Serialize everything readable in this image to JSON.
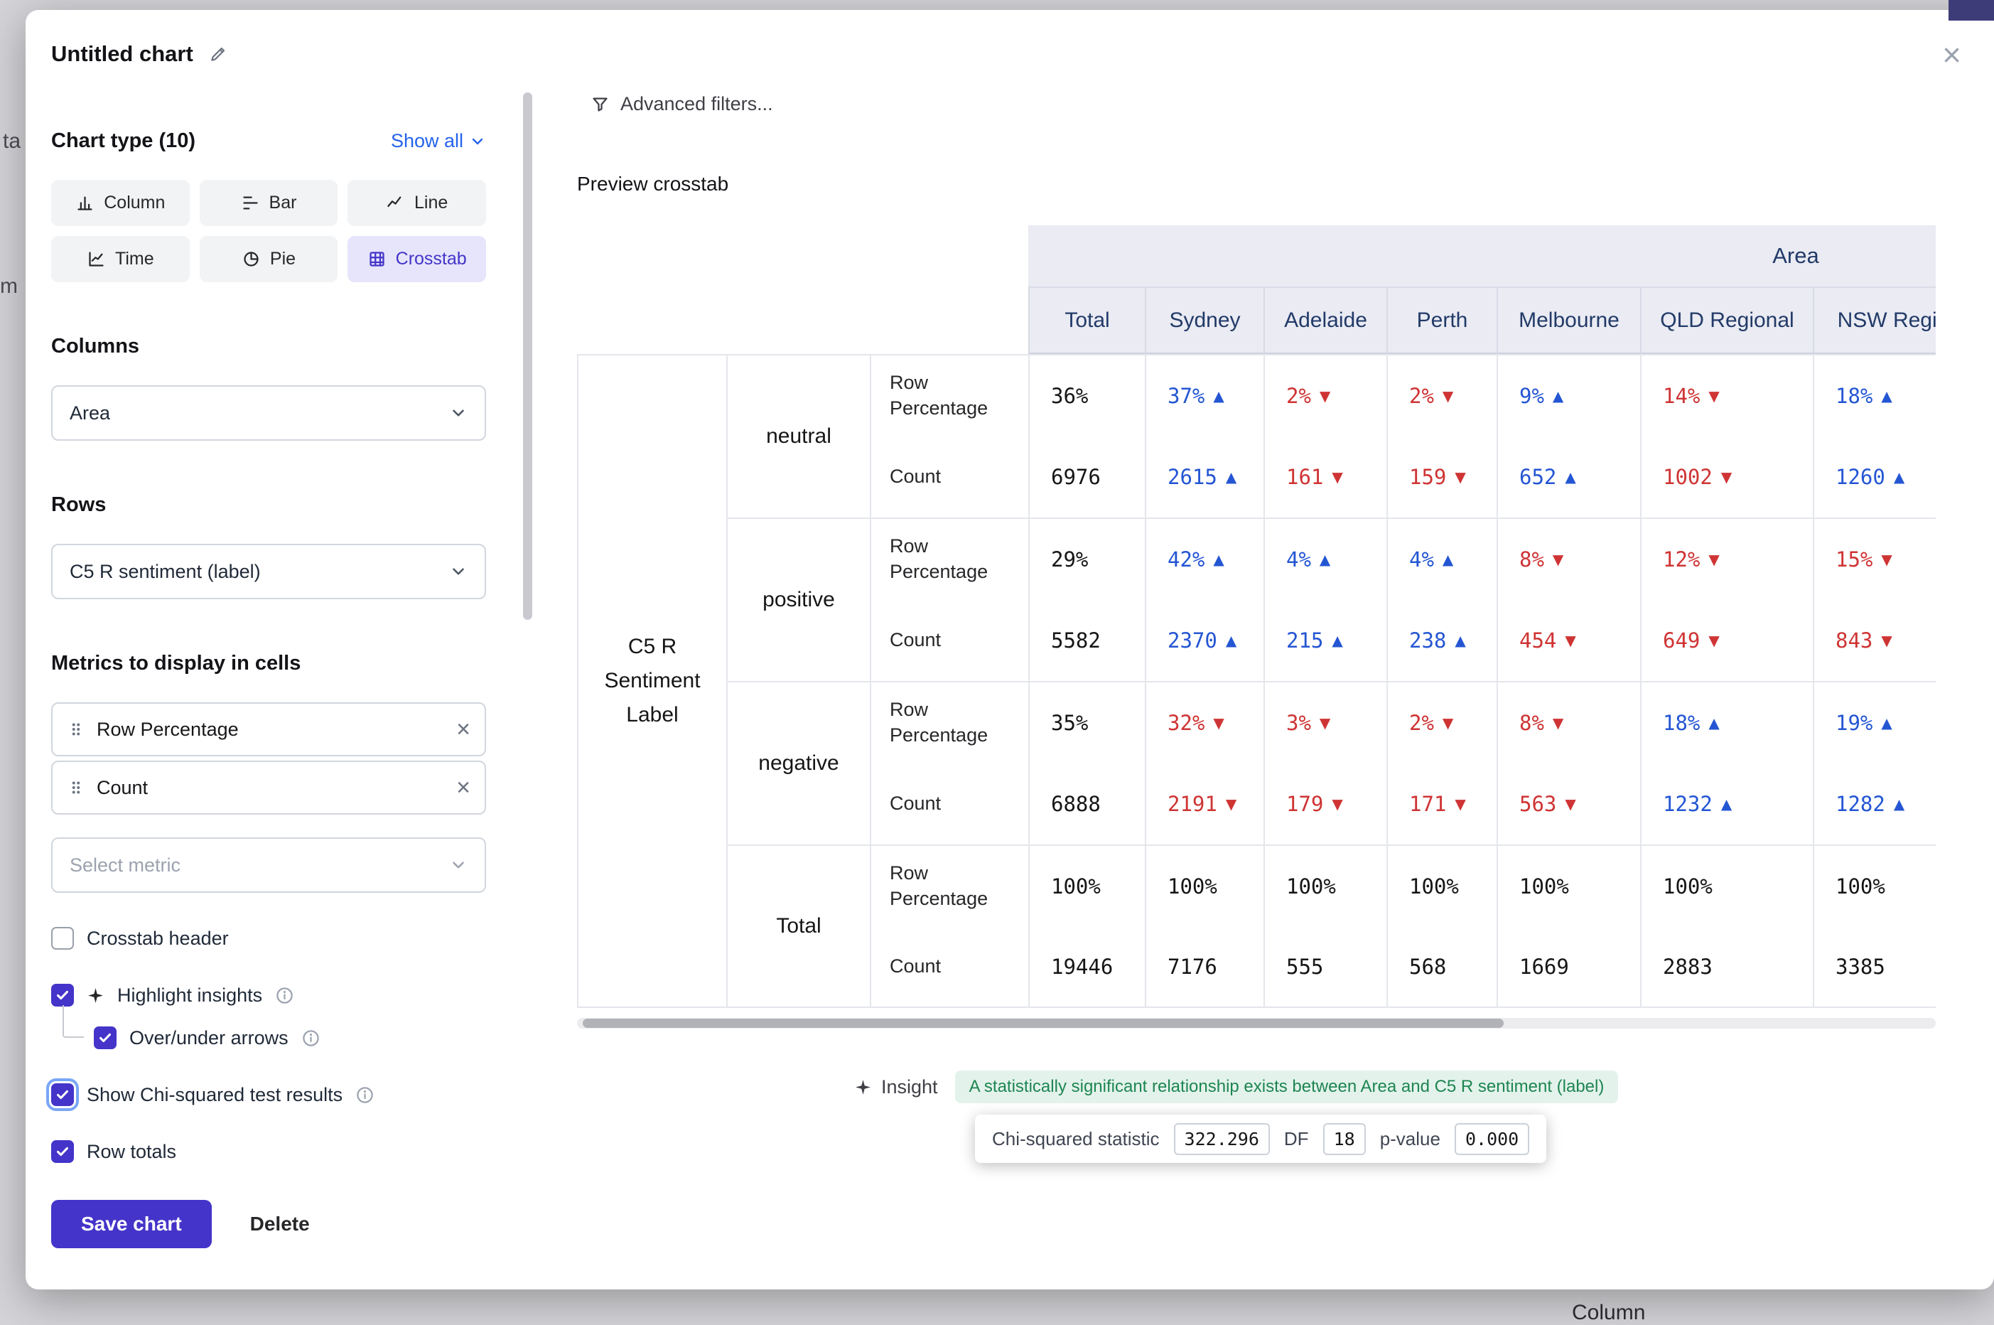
{
  "backdrop": {
    "partial_texts": {
      "left_top": "ta",
      "left_mid": "m",
      "bottom": "Column"
    }
  },
  "modal": {
    "title": "Untitled chart"
  },
  "sidebar": {
    "chart_type_heading": "Chart type (10)",
    "show_all_label": "Show all",
    "chart_types": [
      {
        "label": "Column",
        "selected": false
      },
      {
        "label": "Bar",
        "selected": false
      },
      {
        "label": "Line",
        "selected": false
      },
      {
        "label": "Time",
        "selected": false
      },
      {
        "label": "Pie",
        "selected": false
      },
      {
        "label": "Crosstab",
        "selected": true
      }
    ],
    "columns_heading": "Columns",
    "columns_value": "Area",
    "rows_heading": "Rows",
    "rows_value": "C5 R sentiment (label)",
    "metrics_heading": "Metrics to display in cells",
    "metric_chips": [
      "Row Percentage",
      "Count"
    ],
    "select_metric_placeholder": "Select metric",
    "checkboxes": [
      {
        "label": "Crosstab header",
        "checked": false,
        "info": false,
        "nested": false,
        "focused": false,
        "sparkle": false
      },
      {
        "label": "Highlight insights",
        "checked": true,
        "info": true,
        "nested": false,
        "focused": false,
        "sparkle": true
      },
      {
        "label": "Over/under arrows",
        "checked": true,
        "info": true,
        "nested": true,
        "focused": false,
        "sparkle": false
      },
      {
        "label": "Show Chi-squared test results",
        "checked": true,
        "info": true,
        "nested": false,
        "focused": true,
        "sparkle": false
      },
      {
        "label": "Row totals",
        "checked": true,
        "info": false,
        "nested": false,
        "focused": false,
        "sparkle": false
      }
    ],
    "save_label": "Save chart",
    "delete_label": "Delete"
  },
  "main": {
    "advanced_filters_label": "Advanced filters...",
    "preview_label": "Preview crosstab",
    "insight_label": "Insight",
    "insight_text": "A statistically significant relationship exists between Area and C5 R sentiment (label)",
    "chi_squared": {
      "stat_label": "Chi-squared statistic",
      "stat_value": "322.296",
      "df_label": "DF",
      "df_value": "18",
      "p_label": "p-value",
      "p_value": "0.000"
    }
  },
  "colors": {
    "primary": "#4434c9",
    "link": "#2563eb",
    "trend_up": "#2456d3",
    "trend_down": "#cf3434",
    "header_bg": "#eaebf3",
    "header_text": "#223a68",
    "insight_bg": "#e3f3eb",
    "insight_text": "#1e8552"
  },
  "chart_data": {
    "type": "table",
    "title": "Preview crosstab",
    "column_group": "Area",
    "columns": [
      "Total",
      "Sydney",
      "Adelaide",
      "Perth",
      "Melbourne",
      "QLD Regional",
      "NSW Regional"
    ],
    "row_group": "C5 R Sentiment Label",
    "metrics": [
      "Row Percentage",
      "Count"
    ],
    "rows": [
      {
        "label": "neutral",
        "row_percentage": [
          "36%",
          "37%",
          "2%",
          "2%",
          "9%",
          "14%",
          "18%"
        ],
        "rp_trend": [
          "",
          "up",
          "down",
          "down",
          "up",
          "down",
          "up"
        ],
        "count": [
          "6976",
          "2615",
          "161",
          "159",
          "652",
          "1002",
          "1260"
        ],
        "count_trend": [
          "",
          "up",
          "down",
          "down",
          "up",
          "down",
          "up"
        ]
      },
      {
        "label": "positive",
        "row_percentage": [
          "29%",
          "42%",
          "4%",
          "4%",
          "8%",
          "12%",
          "15%"
        ],
        "rp_trend": [
          "",
          "up",
          "up",
          "up",
          "down",
          "down",
          "down"
        ],
        "count": [
          "5582",
          "2370",
          "215",
          "238",
          "454",
          "649",
          "843"
        ],
        "count_trend": [
          "",
          "up",
          "up",
          "up",
          "down",
          "down",
          "down"
        ]
      },
      {
        "label": "negative",
        "row_percentage": [
          "35%",
          "32%",
          "3%",
          "2%",
          "8%",
          "18%",
          "19%"
        ],
        "rp_trend": [
          "",
          "down",
          "down",
          "down",
          "down",
          "up",
          "up"
        ],
        "count": [
          "6888",
          "2191",
          "179",
          "171",
          "563",
          "1232",
          "1282"
        ],
        "count_trend": [
          "",
          "down",
          "down",
          "down",
          "down",
          "up",
          "up"
        ]
      },
      {
        "label": "Total",
        "row_percentage": [
          "100%",
          "100%",
          "100%",
          "100%",
          "100%",
          "100%",
          "100%"
        ],
        "rp_trend": [
          "",
          "",
          "",
          "",
          "",
          "",
          ""
        ],
        "count": [
          "19446",
          "7176",
          "555",
          "568",
          "1669",
          "2883",
          "3385"
        ],
        "count_trend": [
          "",
          "",
          "",
          "",
          "",
          "",
          ""
        ]
      }
    ]
  }
}
